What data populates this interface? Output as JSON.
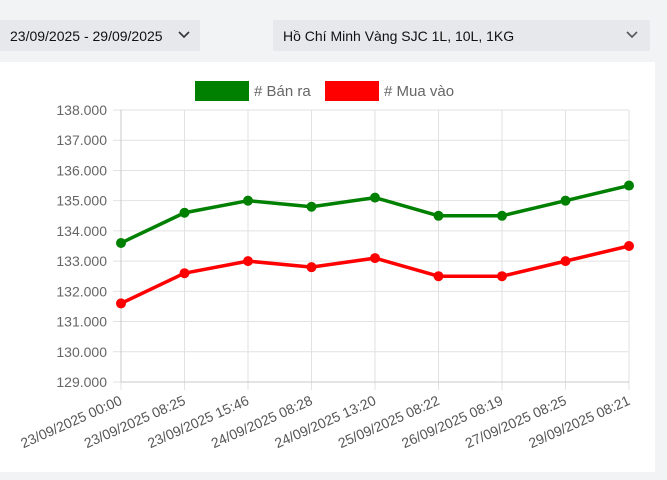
{
  "filters": {
    "date_range": "23/09/2025 - 29/09/2025",
    "product": "Hồ Chí Minh Vàng SJC 1L, 10L, 1KG"
  },
  "icons": {
    "dropdown": "chevron-down-icon"
  },
  "chart_data": {
    "type": "line",
    "x": [
      "23/09/2025 00:00",
      "23/09/2025 08:25",
      "23/09/2025 15:46",
      "24/09/2025 08:28",
      "24/09/2025 13:20",
      "25/09/2025 08:22",
      "26/09/2025 08:19",
      "27/09/2025 08:25",
      "29/09/2025 08:21"
    ],
    "series": [
      {
        "name": "# Bán ra",
        "color": "#008000",
        "values": [
          133.6,
          134.6,
          135.0,
          134.8,
          135.1,
          134.5,
          134.5,
          135.0,
          135.5
        ]
      },
      {
        "name": "# Mua vào",
        "color": "#ff0000",
        "values": [
          131.6,
          132.6,
          133.0,
          132.8,
          133.1,
          132.5,
          132.5,
          133.0,
          133.5
        ]
      }
    ],
    "ylim": [
      129,
      138
    ],
    "y_ticks": [
      "138.000",
      "137.000",
      "136.000",
      "135.000",
      "134.000",
      "133.000",
      "132.000",
      "131.000",
      "130.000",
      "129.000"
    ],
    "legend": "top-center",
    "grid": true
  }
}
